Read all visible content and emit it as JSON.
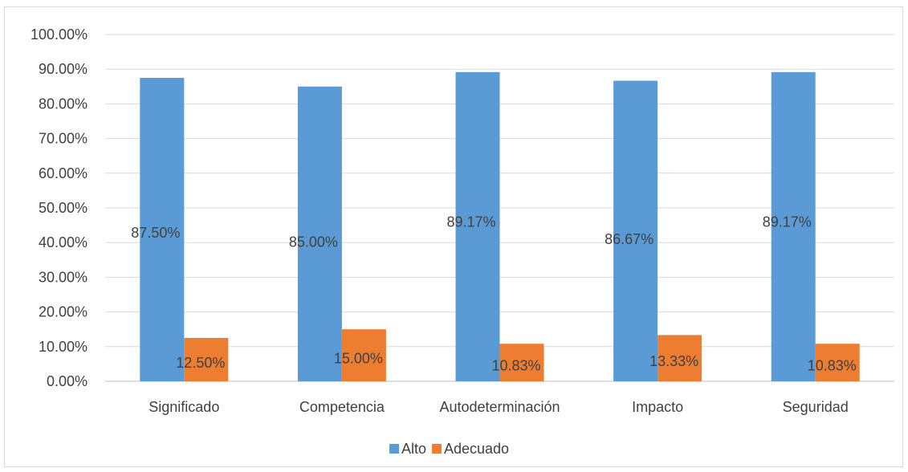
{
  "chart_data": {
    "type": "bar",
    "categories": [
      "Significado",
      "Competencia",
      "Autodeterminación",
      "Impacto",
      "Seguridad"
    ],
    "series": [
      {
        "name": "Alto",
        "values": [
          87.5,
          85.0,
          89.17,
          86.67,
          89.17
        ],
        "labels": [
          "87.50%",
          "85.00%",
          "89.17%",
          "86.67%",
          "89.17%"
        ],
        "color": "#5b9bd5"
      },
      {
        "name": "Adecuado",
        "values": [
          12.5,
          15.0,
          10.83,
          13.33,
          10.83
        ],
        "labels": [
          "12.50%",
          "15.00%",
          "10.83%",
          "13.33%",
          "10.83%"
        ],
        "color": "#ed7d31"
      }
    ],
    "ylim": [
      0,
      100
    ],
    "yticks": [
      "0.00%",
      "10.00%",
      "20.00%",
      "30.00%",
      "40.00%",
      "50.00%",
      "60.00%",
      "70.00%",
      "80.00%",
      "90.00%",
      "100.00%"
    ],
    "grid": true,
    "legend": "bottom",
    "title": "",
    "xlabel": "",
    "ylabel": ""
  }
}
